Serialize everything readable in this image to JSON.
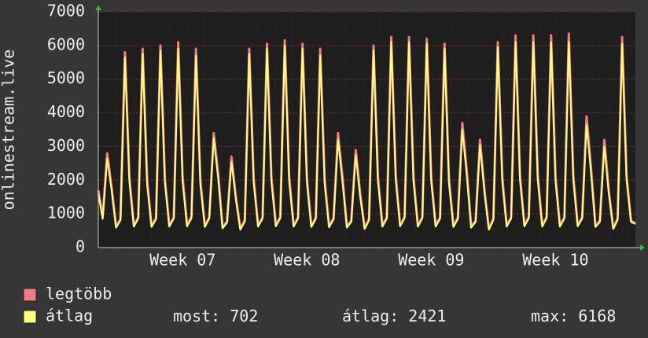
{
  "chart_data": {
    "type": "line",
    "y_axis_label": "onlinestream.live",
    "categories": [
      null,
      null,
      null,
      null,
      null,
      null,
      null,
      null,
      null,
      null,
      null,
      null,
      null,
      null,
      null,
      null,
      null,
      null,
      null,
      "Week 07",
      null,
      null,
      null,
      null,
      null,
      null,
      null,
      null,
      null,
      null,
      null,
      null,
      null,
      null,
      null,
      null,
      null,
      null,
      null,
      null,
      null,
      null,
      null,
      null,
      null,
      null,
      null,
      "Week 08",
      null,
      null,
      null,
      null,
      null,
      null,
      null,
      null,
      null,
      null,
      null,
      null,
      null,
      null,
      null,
      null,
      null,
      null,
      null,
      null,
      null,
      null,
      null,
      null,
      null,
      null,
      null,
      "Week 09",
      null,
      null,
      null,
      null,
      null,
      null,
      null,
      null,
      null,
      null,
      null,
      null,
      null,
      null,
      null,
      null,
      null,
      null,
      null,
      null,
      null,
      null,
      null,
      null,
      null,
      null,
      null,
      "Week 10",
      null,
      null,
      null,
      null,
      null,
      null,
      null,
      null,
      null,
      null,
      null,
      null,
      null,
      null,
      null,
      null,
      null,
      null
    ],
    "series": [
      {
        "name": "legtöbb",
        "color": "#f07c80",
        "values": [
          1700,
          900,
          2800,
          1800,
          620,
          850,
          5800,
          2100,
          650,
          900,
          5900,
          2000,
          640,
          880,
          6000,
          2050,
          650,
          900,
          6100,
          2100,
          660,
          920,
          5900,
          2000,
          640,
          900,
          3400,
          2200,
          600,
          780,
          2700,
          1500,
          560,
          820,
          5900,
          2050,
          650,
          900,
          6050,
          2100,
          660,
          910,
          6150,
          2100,
          650,
          900,
          6050,
          2050,
          640,
          890,
          5900,
          2000,
          630,
          880,
          3400,
          2100,
          620,
          800,
          2900,
          1600,
          580,
          850,
          6000,
          2100,
          650,
          900,
          6250,
          2150,
          660,
          920,
          6250,
          2100,
          650,
          910,
          6200,
          2100,
          650,
          900,
          6050,
          2050,
          640,
          890,
          3700,
          2300,
          620,
          800,
          3200,
          1700,
          560,
          860,
          6100,
          2100,
          650,
          900,
          6300,
          2150,
          660,
          920,
          6300,
          2150,
          650,
          910,
          6300,
          2100,
          650,
          900,
          6350,
          2150,
          660,
          900,
          3900,
          2350,
          640,
          800,
          3200,
          1700,
          580,
          860,
          6250,
          2150,
          800,
          720
        ]
      },
      {
        "name": "átlag",
        "color": "#ffff80",
        "values": [
          1600,
          850,
          2650,
          1700,
          590,
          810,
          5650,
          1950,
          620,
          860,
          5750,
          1850,
          610,
          840,
          5850,
          1900,
          620,
          860,
          5900,
          1950,
          630,
          870,
          5700,
          1850,
          610,
          860,
          3250,
          2050,
          570,
          740,
          2550,
          1400,
          530,
          780,
          5750,
          1900,
          620,
          860,
          5900,
          1950,
          630,
          870,
          6000,
          1950,
          620,
          860,
          5900,
          1900,
          610,
          850,
          5700,
          1850,
          600,
          840,
          3200,
          1950,
          590,
          760,
          2750,
          1500,
          550,
          810,
          5850,
          1950,
          620,
          860,
          6100,
          2000,
          630,
          870,
          6100,
          1950,
          620,
          870,
          6050,
          1950,
          620,
          860,
          5900,
          1900,
          610,
          850,
          3500,
          2150,
          590,
          760,
          3050,
          1600,
          530,
          820,
          5950,
          1950,
          620,
          860,
          6100,
          2000,
          630,
          870,
          6100,
          2000,
          620,
          870,
          6100,
          1950,
          620,
          860,
          6100,
          2000,
          630,
          860,
          3650,
          2200,
          610,
          760,
          3000,
          1600,
          550,
          820,
          6050,
          2000,
          760,
          702
        ]
      }
    ],
    "stats": [
      {
        "label": "most:",
        "value": 702
      },
      {
        "label": "átlag:",
        "value": 2421
      },
      {
        "label": "max:",
        "value": 6168
      }
    ],
    "ylim": [
      0,
      7000
    ],
    "yticks": [
      0,
      1000,
      2000,
      3000,
      4000,
      5000,
      6000,
      7000
    ],
    "grid": true
  }
}
